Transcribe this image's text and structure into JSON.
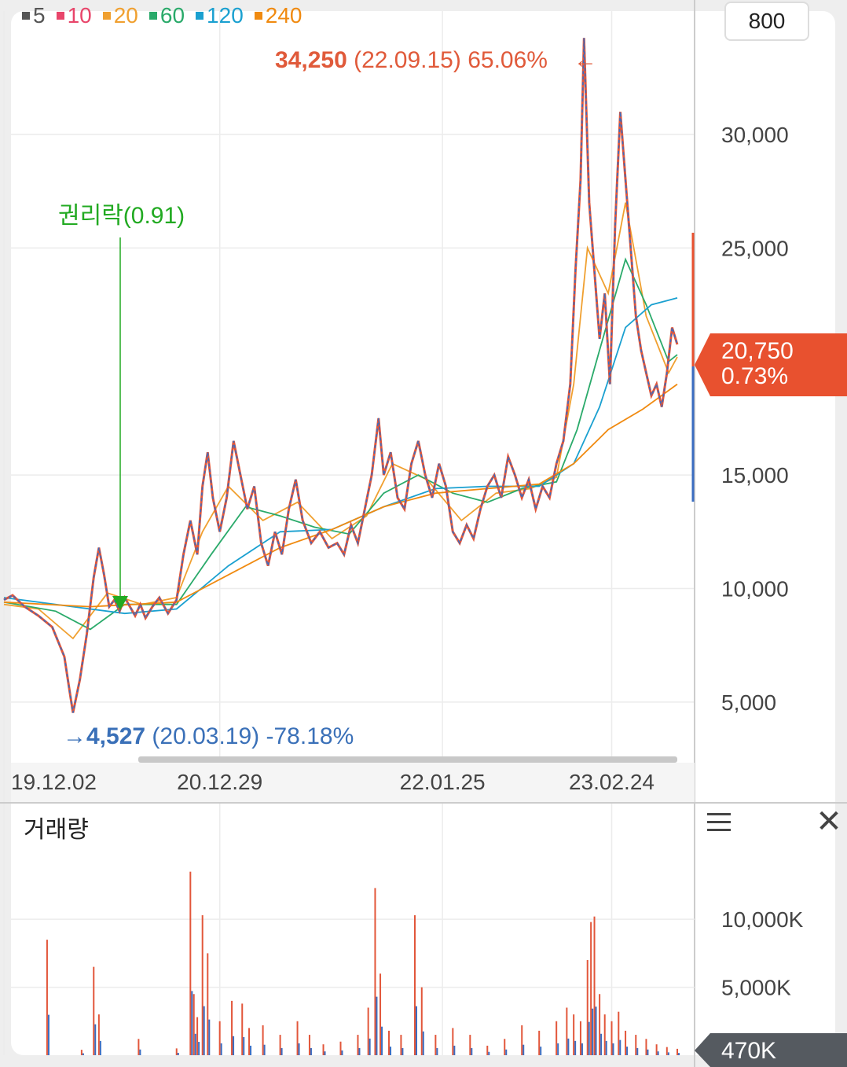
{
  "ma_legend": [
    {
      "label": "5",
      "color": "#555555"
    },
    {
      "label": "10",
      "color": "#e8456a"
    },
    {
      "label": "20",
      "color": "#f0a030"
    },
    {
      "label": "60",
      "color": "#2aaa6a"
    },
    {
      "label": "120",
      "color": "#1aa0d0"
    },
    {
      "label": "240",
      "color": "#f08a10"
    }
  ],
  "top_scale": "800",
  "current_price": {
    "value": "20,750",
    "change": "0.73%",
    "color": "#e8512f"
  },
  "annotations": {
    "high": {
      "value": "34,250",
      "detail": "(22.09.15) 65.06%",
      "arrow": "←",
      "color": "#e05a3a"
    },
    "low": {
      "arrow": "→",
      "value": "4,527",
      "detail": "(20.03.19) -78.18%",
      "color": "#3a70b8"
    },
    "rights": {
      "label": "권리락(0.91)",
      "color": "#22aa22"
    }
  },
  "volume": {
    "title": "거래량",
    "current": "470K"
  },
  "chart_data": [
    {
      "type": "line",
      "name": "price",
      "x_labels": [
        "19.12.02",
        "20.12.29",
        "22.01.25",
        "23.02.24"
      ],
      "y_ticks": [
        5000,
        10000,
        15000,
        25000,
        30000
      ],
      "y_tick_labels": [
        "5,000",
        "10,000",
        "15,000",
        "25,000",
        "30,000"
      ],
      "ylim": [
        2500,
        33500
      ],
      "grid": true,
      "price_points": [
        [
          0,
          9500
        ],
        [
          5,
          9700
        ],
        [
          12,
          9200
        ],
        [
          20,
          8800
        ],
        [
          28,
          8300
        ],
        [
          35,
          7000
        ],
        [
          38,
          5500
        ],
        [
          40,
          4527
        ],
        [
          44,
          6000
        ],
        [
          48,
          8000
        ],
        [
          52,
          10500
        ],
        [
          55,
          11800
        ],
        [
          58,
          10600
        ],
        [
          61,
          9200
        ],
        [
          64,
          9500
        ],
        [
          67,
          9000
        ],
        [
          70,
          9600
        ],
        [
          73,
          9200
        ],
        [
          76,
          8800
        ],
        [
          79,
          9300
        ],
        [
          82,
          8700
        ],
        [
          86,
          9200
        ],
        [
          90,
          9600
        ],
        [
          95,
          8900
        ],
        [
          100,
          9500
        ],
        [
          104,
          11500
        ],
        [
          108,
          13000
        ],
        [
          112,
          11500
        ],
        [
          115,
          14500
        ],
        [
          118,
          16000
        ],
        [
          121,
          14000
        ],
        [
          125,
          12500
        ],
        [
          129,
          14000
        ],
        [
          133,
          16500
        ],
        [
          137,
          15000
        ],
        [
          141,
          13500
        ],
        [
          145,
          14500
        ],
        [
          149,
          12000
        ],
        [
          153,
          11000
        ],
        [
          157,
          12500
        ],
        [
          161,
          11500
        ],
        [
          165,
          13500
        ],
        [
          169,
          14800
        ],
        [
          173,
          13000
        ],
        [
          178,
          12000
        ],
        [
          183,
          12500
        ],
        [
          188,
          11800
        ],
        [
          193,
          12000
        ],
        [
          197,
          11500
        ],
        [
          201,
          12800
        ],
        [
          205,
          12000
        ],
        [
          209,
          13500
        ],
        [
          213,
          15000
        ],
        [
          217,
          17500
        ],
        [
          220,
          15000
        ],
        [
          224,
          16000
        ],
        [
          228,
          14000
        ],
        [
          232,
          13500
        ],
        [
          236,
          15500
        ],
        [
          240,
          16500
        ],
        [
          244,
          15000
        ],
        [
          248,
          14000
        ],
        [
          252,
          15500
        ],
        [
          256,
          14500
        ],
        [
          260,
          12500
        ],
        [
          264,
          12000
        ],
        [
          268,
          12800
        ],
        [
          272,
          12200
        ],
        [
          276,
          13500
        ],
        [
          280,
          14500
        ],
        [
          284,
          15000
        ],
        [
          288,
          14000
        ],
        [
          292,
          15800
        ],
        [
          296,
          15000
        ],
        [
          300,
          14000
        ],
        [
          304,
          14800
        ],
        [
          308,
          13500
        ],
        [
          312,
          14500
        ],
        [
          316,
          14000
        ],
        [
          320,
          15500
        ],
        [
          324,
          16500
        ],
        [
          328,
          19000
        ],
        [
          331,
          24000
        ],
        [
          334,
          28000
        ],
        [
          336,
          34250
        ],
        [
          339,
          27000
        ],
        [
          342,
          24000
        ],
        [
          345,
          21000
        ],
        [
          348,
          23000
        ],
        [
          351,
          19000
        ],
        [
          354,
          26000
        ],
        [
          357,
          31000
        ],
        [
          360,
          28000
        ],
        [
          363,
          25000
        ],
        [
          366,
          22000
        ],
        [
          369,
          20500
        ],
        [
          372,
          19500
        ],
        [
          375,
          18500
        ],
        [
          378,
          19000
        ],
        [
          381,
          18000
        ],
        [
          384,
          19500
        ],
        [
          387,
          21500
        ],
        [
          390,
          20750
        ]
      ],
      "ma_paths": [
        {
          "name": "20",
          "points": [
            [
              0,
              9300
            ],
            [
              20,
              9100
            ],
            [
              40,
              7800
            ],
            [
              60,
              9800
            ],
            [
              80,
              9300
            ],
            [
              100,
              9600
            ],
            [
              115,
              12500
            ],
            [
              130,
              14500
            ],
            [
              150,
              13000
            ],
            [
              170,
              13800
            ],
            [
              190,
              12200
            ],
            [
              210,
              13200
            ],
            [
              225,
              15500
            ],
            [
              245,
              14800
            ],
            [
              265,
              13000
            ],
            [
              285,
              14200
            ],
            [
              305,
              14400
            ],
            [
              320,
              14900
            ],
            [
              330,
              19000
            ],
            [
              338,
              25000
            ],
            [
              350,
              23000
            ],
            [
              360,
              27000
            ],
            [
              372,
              22000
            ],
            [
              385,
              19500
            ],
            [
              390,
              20200
            ]
          ]
        },
        {
          "name": "60",
          "points": [
            [
              0,
              9400
            ],
            [
              30,
              9000
            ],
            [
              50,
              8200
            ],
            [
              70,
              9300
            ],
            [
              100,
              9300
            ],
            [
              120,
              11500
            ],
            [
              140,
              13600
            ],
            [
              160,
              13200
            ],
            [
              180,
              12700
            ],
            [
              200,
              12400
            ],
            [
              220,
              14200
            ],
            [
              240,
              15000
            ],
            [
              260,
              14200
            ],
            [
              280,
              13800
            ],
            [
              300,
              14400
            ],
            [
              320,
              14700
            ],
            [
              332,
              17000
            ],
            [
              345,
              20500
            ],
            [
              360,
              24500
            ],
            [
              372,
              22500
            ],
            [
              385,
              20000
            ],
            [
              390,
              20300
            ]
          ]
        },
        {
          "name": "120",
          "points": [
            [
              0,
              9600
            ],
            [
              40,
              9200
            ],
            [
              70,
              8900
            ],
            [
              100,
              9100
            ],
            [
              130,
              11000
            ],
            [
              160,
              12500
            ],
            [
              190,
              12600
            ],
            [
              220,
              13600
            ],
            [
              250,
              14400
            ],
            [
              280,
              14500
            ],
            [
              310,
              14500
            ],
            [
              330,
              15500
            ],
            [
              345,
              18000
            ],
            [
              360,
              21500
            ],
            [
              375,
              22500
            ],
            [
              390,
              22800
            ]
          ]
        },
        {
          "name": "240",
          "points": [
            [
              0,
              9400
            ],
            [
              50,
              9200
            ],
            [
              100,
              9400
            ],
            [
              130,
              10600
            ],
            [
              160,
              11800
            ],
            [
              190,
              12600
            ],
            [
              220,
              13600
            ],
            [
              250,
              14200
            ],
            [
              280,
              14400
            ],
            [
              310,
              14600
            ],
            [
              330,
              15500
            ],
            [
              350,
              17000
            ],
            [
              370,
              17900
            ],
            [
              390,
              19000
            ]
          ]
        }
      ]
    },
    {
      "type": "bar",
      "name": "volume",
      "y_ticks": [
        5000,
        10000
      ],
      "y_tick_labels": [
        "5,000K",
        "10,000K"
      ],
      "ylim": [
        0,
        14000
      ],
      "bars": [
        [
          25,
          8500
        ],
        [
          45,
          400
        ],
        [
          52,
          6500
        ],
        [
          55,
          3000
        ],
        [
          78,
          1200
        ],
        [
          100,
          500
        ],
        [
          108,
          13500
        ],
        [
          110,
          4500
        ],
        [
          112,
          2800
        ],
        [
          115,
          10300
        ],
        [
          118,
          7500
        ],
        [
          125,
          2500
        ],
        [
          132,
          4000
        ],
        [
          138,
          3800
        ],
        [
          142,
          2000
        ],
        [
          150,
          2200
        ],
        [
          160,
          1500
        ],
        [
          170,
          2500
        ],
        [
          177,
          1500
        ],
        [
          185,
          800
        ],
        [
          195,
          1000
        ],
        [
          205,
          1500
        ],
        [
          211,
          3500
        ],
        [
          215,
          12300
        ],
        [
          218,
          6000
        ],
        [
          223,
          1800
        ],
        [
          230,
          1500
        ],
        [
          238,
          10300
        ],
        [
          242,
          5000
        ],
        [
          250,
          1500
        ],
        [
          260,
          2000
        ],
        [
          270,
          1500
        ],
        [
          280,
          700
        ],
        [
          290,
          1200
        ],
        [
          300,
          2200
        ],
        [
          310,
          1800
        ],
        [
          320,
          2500
        ],
        [
          326,
          3500
        ],
        [
          330,
          3000
        ],
        [
          334,
          2500
        ],
        [
          338,
          7000
        ],
        [
          340,
          9800
        ],
        [
          342,
          10200
        ],
        [
          345,
          4500
        ],
        [
          348,
          3000
        ],
        [
          352,
          2500
        ],
        [
          356,
          3200
        ],
        [
          360,
          1800
        ],
        [
          366,
          1500
        ],
        [
          372,
          1200
        ],
        [
          378,
          800
        ],
        [
          384,
          600
        ],
        [
          390,
          470
        ]
      ]
    }
  ]
}
